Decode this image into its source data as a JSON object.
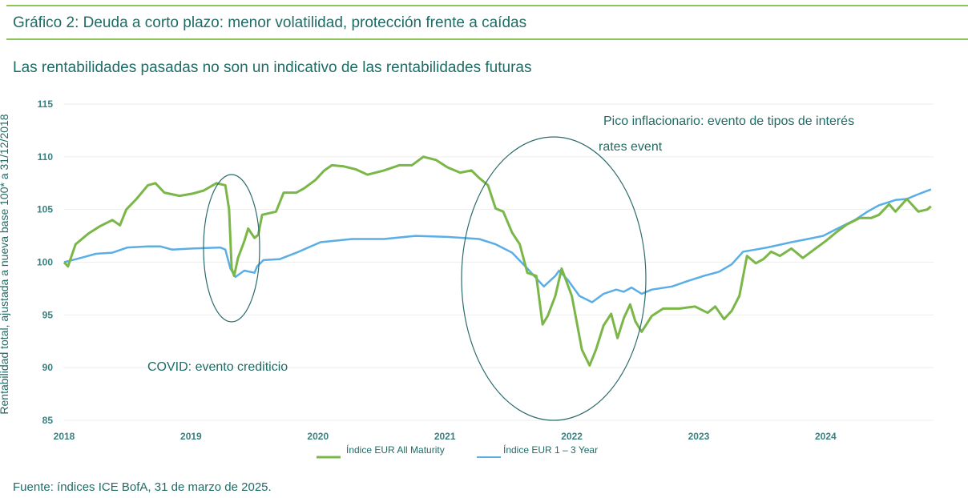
{
  "header": {
    "title": "Gráfico 2: Deuda a corto plazo: menor volatilidad, protección frente a caídas"
  },
  "subtitle": "Las rentabilidades pasadas no son un indicativo de las rentabilidades futuras",
  "footer": {
    "source": "Fuente: índices ICE BofA, 31 de marzo de 2025."
  },
  "colors": {
    "green": "#7ab648",
    "blue": "#5aaee6",
    "teal": "#1f6b66",
    "grid": "#eeeeee"
  },
  "chart_data": {
    "type": "line",
    "title": "",
    "xlabel": "",
    "ylabel": "Rentabilidad total, ajustada a nueva base 100* a 31/12/2018",
    "xlim": [
      2018,
      2024.85
    ],
    "ylim": [
      85,
      115
    ],
    "grid": true,
    "legend_placement": "bottom",
    "x_ticks": [
      "2018",
      "2019",
      "2020",
      "2021",
      "2022",
      "2023",
      "2024"
    ],
    "y_ticks": [
      "85",
      "90",
      "95",
      "100",
      "105",
      "110",
      "115"
    ],
    "annotations": [
      {
        "text": "COVID: evento crediticio",
        "x_range": [
          2019.11,
          2019.53
        ],
        "y_range": [
          93,
          109.8
        ]
      },
      {
        "text": "Pico inflacionario: evento de tipos de interés",
        "x_range": [
          2021.14,
          2022.59
        ],
        "y_range": [
          88.8,
          112
        ]
      },
      {
        "text": "rates event"
      }
    ],
    "series": [
      {
        "name": "Índice EUR All Maturity",
        "color": "#7ab648",
        "points": [
          [
            2018.0,
            100.0
          ],
          [
            2018.03,
            99.6
          ],
          [
            2018.09,
            101.7
          ],
          [
            2018.19,
            102.7
          ],
          [
            2018.28,
            103.4
          ],
          [
            2018.38,
            104.0
          ],
          [
            2018.44,
            103.5
          ],
          [
            2018.49,
            105.0
          ],
          [
            2018.57,
            106.0
          ],
          [
            2018.66,
            107.3
          ],
          [
            2018.72,
            107.5
          ],
          [
            2018.79,
            106.6
          ],
          [
            2018.91,
            106.3
          ],
          [
            2019.01,
            106.5
          ],
          [
            2019.1,
            106.8
          ],
          [
            2019.2,
            107.5
          ],
          [
            2019.27,
            107.3
          ],
          [
            2019.3,
            105.0
          ],
          [
            2019.32,
            99.4
          ],
          [
            2019.34,
            98.7
          ],
          [
            2019.37,
            100.4
          ],
          [
            2019.42,
            102.0
          ],
          [
            2019.45,
            103.2
          ],
          [
            2019.5,
            102.3
          ],
          [
            2019.53,
            102.6
          ],
          [
            2019.56,
            104.5
          ],
          [
            2019.67,
            104.8
          ],
          [
            2019.73,
            106.6
          ],
          [
            2019.83,
            106.6
          ],
          [
            2019.89,
            107.0
          ],
          [
            2019.98,
            107.8
          ],
          [
            2020.05,
            108.7
          ],
          [
            2020.11,
            109.2
          ],
          [
            2020.2,
            109.1
          ],
          [
            2020.3,
            108.8
          ],
          [
            2020.39,
            108.3
          ],
          [
            2020.52,
            108.7
          ],
          [
            2020.64,
            109.2
          ],
          [
            2020.74,
            109.2
          ],
          [
            2020.83,
            110.0
          ],
          [
            2020.93,
            109.7
          ],
          [
            2021.02,
            109.0
          ],
          [
            2021.12,
            108.5
          ],
          [
            2021.21,
            108.7
          ],
          [
            2021.27,
            108.0
          ],
          [
            2021.34,
            107.3
          ],
          [
            2021.4,
            105.1
          ],
          [
            2021.46,
            104.8
          ],
          [
            2021.53,
            102.8
          ],
          [
            2021.59,
            101.7
          ],
          [
            2021.65,
            99.0
          ],
          [
            2021.72,
            98.7
          ],
          [
            2021.77,
            94.1
          ],
          [
            2021.81,
            94.9
          ],
          [
            2021.87,
            96.8
          ],
          [
            2021.92,
            99.4
          ],
          [
            2022.0,
            96.8
          ],
          [
            2022.08,
            91.7
          ],
          [
            2022.14,
            90.2
          ],
          [
            2022.19,
            91.7
          ],
          [
            2022.25,
            94.0
          ],
          [
            2022.31,
            95.1
          ],
          [
            2022.36,
            92.8
          ],
          [
            2022.41,
            94.7
          ],
          [
            2022.46,
            96.0
          ],
          [
            2022.5,
            94.4
          ],
          [
            2022.55,
            93.4
          ],
          [
            2022.63,
            94.9
          ],
          [
            2022.72,
            95.6
          ],
          [
            2022.85,
            95.6
          ],
          [
            2022.97,
            95.8
          ],
          [
            2023.07,
            95.2
          ],
          [
            2023.13,
            95.8
          ],
          [
            2023.2,
            94.6
          ],
          [
            2023.26,
            95.4
          ],
          [
            2023.32,
            96.8
          ],
          [
            2023.38,
            100.6
          ],
          [
            2023.45,
            99.9
          ],
          [
            2023.51,
            100.3
          ],
          [
            2023.57,
            101.0
          ],
          [
            2023.64,
            100.6
          ],
          [
            2023.73,
            101.3
          ],
          [
            2023.82,
            100.4
          ],
          [
            2023.92,
            101.3
          ],
          [
            2024.01,
            102.1
          ],
          [
            2024.08,
            102.8
          ],
          [
            2024.17,
            103.6
          ],
          [
            2024.27,
            104.2
          ],
          [
            2024.36,
            104.2
          ],
          [
            2024.42,
            104.5
          ],
          [
            2024.5,
            105.5
          ],
          [
            2024.55,
            104.8
          ],
          [
            2024.64,
            106.0
          ],
          [
            2024.73,
            104.8
          ],
          [
            2024.8,
            105.0
          ],
          [
            2024.83,
            105.3
          ]
        ]
      },
      {
        "name": "Índice EUR 1 – 3 Year",
        "color": "#5aaee6",
        "points": [
          [
            2018.0,
            100.0
          ],
          [
            2018.13,
            100.4
          ],
          [
            2018.25,
            100.8
          ],
          [
            2018.38,
            100.9
          ],
          [
            2018.5,
            101.4
          ],
          [
            2018.66,
            101.5
          ],
          [
            2018.76,
            101.5
          ],
          [
            2018.85,
            101.2
          ],
          [
            2019.01,
            101.3
          ],
          [
            2019.23,
            101.4
          ],
          [
            2019.27,
            101.2
          ],
          [
            2019.31,
            99.4
          ],
          [
            2019.35,
            98.6
          ],
          [
            2019.42,
            99.2
          ],
          [
            2019.5,
            99.0
          ],
          [
            2019.52,
            99.6
          ],
          [
            2019.57,
            100.2
          ],
          [
            2019.7,
            100.3
          ],
          [
            2019.83,
            100.9
          ],
          [
            2020.02,
            101.9
          ],
          [
            2020.27,
            102.2
          ],
          [
            2020.52,
            102.2
          ],
          [
            2020.77,
            102.5
          ],
          [
            2021.02,
            102.4
          ],
          [
            2021.27,
            102.2
          ],
          [
            2021.4,
            101.7
          ],
          [
            2021.53,
            100.9
          ],
          [
            2021.65,
            99.4
          ],
          [
            2021.78,
            97.7
          ],
          [
            2021.87,
            98.7
          ],
          [
            2021.9,
            99.2
          ],
          [
            2021.97,
            98.3
          ],
          [
            2022.06,
            96.8
          ],
          [
            2022.16,
            96.2
          ],
          [
            2022.25,
            97.0
          ],
          [
            2022.35,
            97.4
          ],
          [
            2022.41,
            97.2
          ],
          [
            2022.47,
            97.6
          ],
          [
            2022.55,
            97.0
          ],
          [
            2022.63,
            97.4
          ],
          [
            2022.79,
            97.7
          ],
          [
            2022.91,
            98.2
          ],
          [
            2023.04,
            98.7
          ],
          [
            2023.16,
            99.1
          ],
          [
            2023.26,
            99.8
          ],
          [
            2023.35,
            101.0
          ],
          [
            2023.45,
            101.2
          ],
          [
            2023.54,
            101.4
          ],
          [
            2023.73,
            101.9
          ],
          [
            2023.86,
            102.2
          ],
          [
            2023.98,
            102.5
          ],
          [
            2024.11,
            103.3
          ],
          [
            2024.23,
            104.0
          ],
          [
            2024.33,
            104.8
          ],
          [
            2024.42,
            105.4
          ],
          [
            2024.55,
            105.9
          ],
          [
            2024.64,
            106.0
          ],
          [
            2024.74,
            106.5
          ],
          [
            2024.83,
            106.9
          ]
        ]
      }
    ]
  }
}
